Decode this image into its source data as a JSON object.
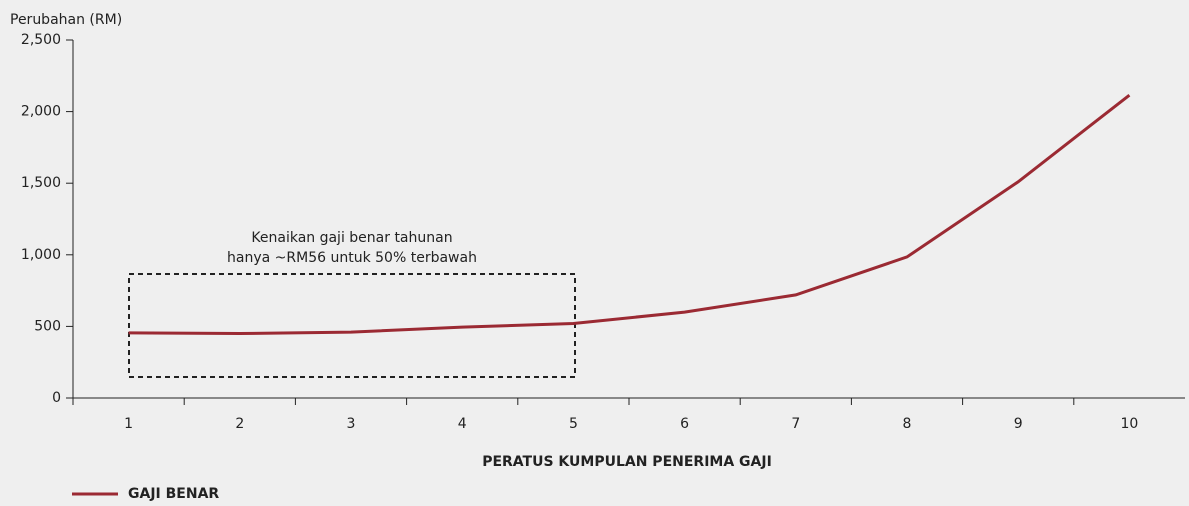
{
  "chart_data": {
    "type": "line",
    "y_axis_label": "Perubahan (RM)",
    "x_axis_label": "PERATUS KUMPULAN PENERIMA GAJI",
    "categories": [
      "1",
      "2",
      "3",
      "4",
      "5",
      "6",
      "7",
      "8",
      "9",
      "10"
    ],
    "series": [
      {
        "name": "GAJI BENAR",
        "color": "#9b2a33",
        "values": [
          455,
          450,
          460,
          495,
          520,
          600,
          720,
          985,
          1510,
          2115
        ]
      }
    ],
    "ylim": [
      0,
      2500
    ],
    "yticks": [
      0,
      500,
      {
        "value": 1000,
        "label": "1,000"
      },
      {
        "value": 1500,
        "label": "1,500"
      },
      {
        "value": 2000,
        "label": "2,000"
      },
      {
        "value": 2500,
        "label": "2,500"
      }
    ],
    "annotation": [
      "Kenaikan gaji benar tahunan",
      "hanya ~RM56 untuk 50% terbawah"
    ],
    "legend": "bottom-left"
  }
}
